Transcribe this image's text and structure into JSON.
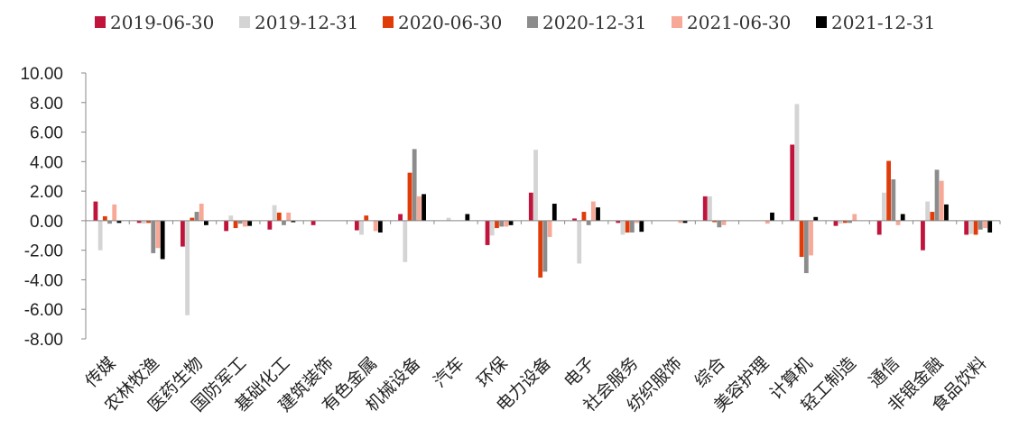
{
  "colors": {
    "s2019_06": "#c0143c",
    "s2019_12": "#d4d4d4",
    "s2020_06": "#e03c0a",
    "s2020_12": "#8c8c8c",
    "s2021_06": "#f7a896",
    "s2021_12": "#000000"
  },
  "chart_data": {
    "type": "bar",
    "title": "",
    "xlabel": "",
    "ylabel": "",
    "ylim": [
      -8,
      10
    ],
    "yticks": [
      "10.00",
      "8.00",
      "6.00",
      "4.00",
      "2.00",
      "0.00",
      "-2.00",
      "-4.00",
      "-6.00",
      "-8.00"
    ],
    "grid": false,
    "legend_position": "top",
    "categories": [
      "传媒",
      "农林牧渔",
      "医药生物",
      "国防军工",
      "基础化工",
      "建筑装饰",
      "有色金属",
      "机械设备",
      "汽车",
      "环保",
      "电力设备",
      "电子",
      "社会服务",
      "纺织服饰",
      "综合",
      "美容护理",
      "计算机",
      "轻工制造",
      "通信",
      "非银金融",
      "食品饮料"
    ],
    "series": [
      {
        "name": "2019-06-30",
        "color": "#c0143c",
        "values": [
          1.3,
          -0.15,
          -1.75,
          -0.7,
          -0.6,
          -0.3,
          -0.65,
          0.45,
          0.0,
          -1.65,
          1.9,
          0.15,
          -0.15,
          0.0,
          1.65,
          0.0,
          5.15,
          -0.35,
          -0.95,
          -2.0,
          -0.95
        ]
      },
      {
        "name": "2019-12-31",
        "color": "#d4d4d4",
        "values": [
          -2.0,
          -0.2,
          -6.4,
          0.35,
          1.05,
          0.0,
          -0.95,
          -2.8,
          0.2,
          -1.0,
          4.8,
          -2.9,
          -0.95,
          0.0,
          1.65,
          0.0,
          7.9,
          -0.2,
          1.9,
          1.3,
          -0.9
        ]
      },
      {
        "name": "2020-06-30",
        "color": "#e03c0a",
        "values": [
          0.3,
          -0.15,
          0.2,
          -0.5,
          0.55,
          0.0,
          0.35,
          3.25,
          0.0,
          -0.5,
          -3.85,
          0.6,
          -0.8,
          0.0,
          -0.1,
          0.0,
          -2.45,
          -0.15,
          4.05,
          0.6,
          -0.95
        ]
      },
      {
        "name": "2020-12-31",
        "color": "#8c8c8c",
        "values": [
          -0.2,
          -2.2,
          0.6,
          -0.2,
          -0.3,
          0.0,
          0.0,
          4.85,
          0.0,
          -0.4,
          -3.45,
          -0.3,
          -0.8,
          0.0,
          -0.45,
          0.0,
          -3.55,
          -0.15,
          2.8,
          3.45,
          -0.6
        ]
      },
      {
        "name": "2021-06-30",
        "color": "#f7a896",
        "values": [
          1.1,
          -1.85,
          1.15,
          -0.4,
          0.55,
          0.0,
          -0.7,
          1.65,
          0.0,
          -0.4,
          -1.1,
          1.3,
          -0.15,
          -0.15,
          -0.3,
          -0.2,
          -2.35,
          0.45,
          -0.3,
          2.7,
          -0.5
        ]
      },
      {
        "name": "2021-12-31",
        "color": "#000000",
        "values": [
          -0.15,
          -2.6,
          -0.3,
          -0.35,
          -0.1,
          0.0,
          -0.8,
          1.8,
          0.45,
          -0.3,
          1.15,
          0.9,
          -0.75,
          -0.15,
          0.0,
          0.55,
          0.25,
          0.0,
          0.45,
          1.1,
          -0.8
        ]
      }
    ]
  }
}
